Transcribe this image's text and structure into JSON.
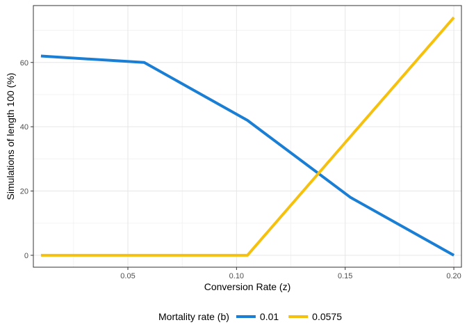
{
  "chart_data": {
    "type": "line",
    "xlabel": "Conversion Rate (z)",
    "ylabel": "Simulations of length 100 (%)",
    "xlim": [
      0.0065,
      0.2035
    ],
    "ylim": [
      -3.7,
      77.7
    ],
    "x_ticks": [
      "0.05",
      "0.10",
      "0.15",
      "0.20"
    ],
    "y_ticks": [
      "0",
      "20",
      "40",
      "60"
    ],
    "x": [
      0.01,
      0.0575,
      0.105,
      0.1525,
      0.2
    ],
    "grid": true,
    "legend": {
      "title": "Mortality rate (b)",
      "position": "bottom"
    },
    "series": [
      {
        "name": "0.01",
        "color": "#1a7fd4",
        "values": [
          62,
          60,
          42,
          18,
          0
        ]
      },
      {
        "name": "0.0575",
        "color": "#f5c10e",
        "values": [
          0,
          0,
          0,
          37,
          74
        ]
      }
    ]
  }
}
